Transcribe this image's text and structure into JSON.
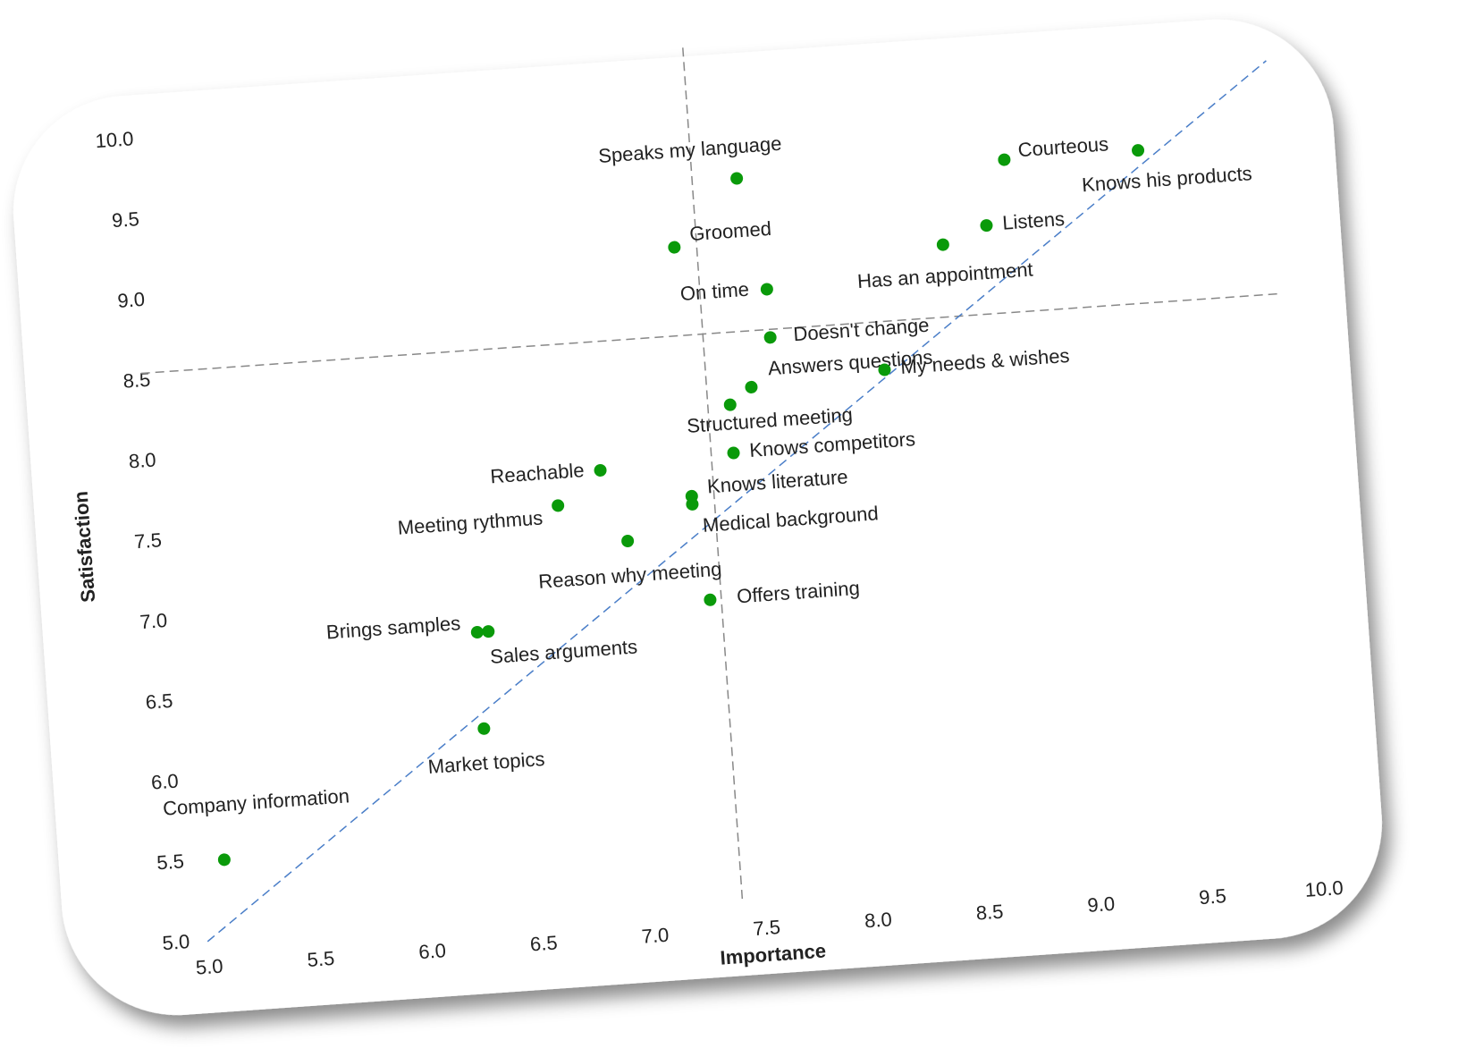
{
  "chart_data": {
    "type": "scatter",
    "x_label": "Importance",
    "y_label": "Satisfaction",
    "xlim": [
      5,
      10
    ],
    "ylim": [
      5,
      10
    ],
    "xticks": [
      {
        "value": 5,
        "label": "5.0"
      },
      {
        "value": 5.5,
        "label": "5.5"
      },
      {
        "value": 6,
        "label": "6.0"
      },
      {
        "value": 6.5,
        "label": "6.5"
      },
      {
        "value": 7,
        "label": "7.0"
      },
      {
        "value": 7.5,
        "label": "7.5"
      },
      {
        "value": 8,
        "label": "8.0"
      },
      {
        "value": 8.5,
        "label": "8.5"
      },
      {
        "value": 9,
        "label": "9.0"
      },
      {
        "value": 9.5,
        "label": "9.5"
      },
      {
        "value": 10,
        "label": "10.0"
      }
    ],
    "yticks": [
      {
        "value": 5,
        "label": "5.0"
      },
      {
        "value": 5.5,
        "label": "5.5"
      },
      {
        "value": 6,
        "label": "6.0"
      },
      {
        "value": 6.5,
        "label": "6.5"
      },
      {
        "value": 7,
        "label": "7.0"
      },
      {
        "value": 7.5,
        "label": "7.5"
      },
      {
        "value": 8,
        "label": "8.0"
      },
      {
        "value": 8.5,
        "label": "8.5"
      },
      {
        "value": 9,
        "label": "9.0"
      },
      {
        "value": 9.5,
        "label": "9.5"
      },
      {
        "value": 10,
        "label": "10.0"
      }
    ],
    "color": "#0a9a0a",
    "x_reference": 7.4,
    "y_reference": 8.55,
    "diagonal": true,
    "labels": [
      "Speaks my language",
      "Groomed",
      "On time",
      "Courteous",
      "Knows his products",
      "Listens",
      "Has an appointment",
      "Doesn't change",
      "Answers questions",
      "Structured meeting",
      "My needs & wishes",
      "Knows competitors",
      "Knows literature",
      "Medical background",
      "Offers training",
      "Reachable",
      "Meeting rythmus",
      "Reason why meeting",
      "Brings samples",
      "Sales arguments",
      "Market topics",
      "Company information"
    ],
    "x": [
      7.6,
      7.3,
      7.7,
      8.8,
      9.4,
      8.7,
      8.5,
      7.7,
      7.6,
      7.5,
      8.2,
      7.5,
      7.3,
      7.3,
      7.35,
      6.9,
      6.7,
      7.0,
      6.3,
      6.35,
      6.3,
      5.1
    ],
    "y": [
      9.5,
      9.1,
      8.8,
      9.5,
      9.5,
      9.1,
      9.0,
      8.5,
      8.2,
      8.1,
      8.25,
      7.8,
      7.55,
      7.5,
      6.9,
      7.75,
      7.55,
      7.3,
      6.8,
      6.8,
      6.2,
      5.5
    ]
  }
}
